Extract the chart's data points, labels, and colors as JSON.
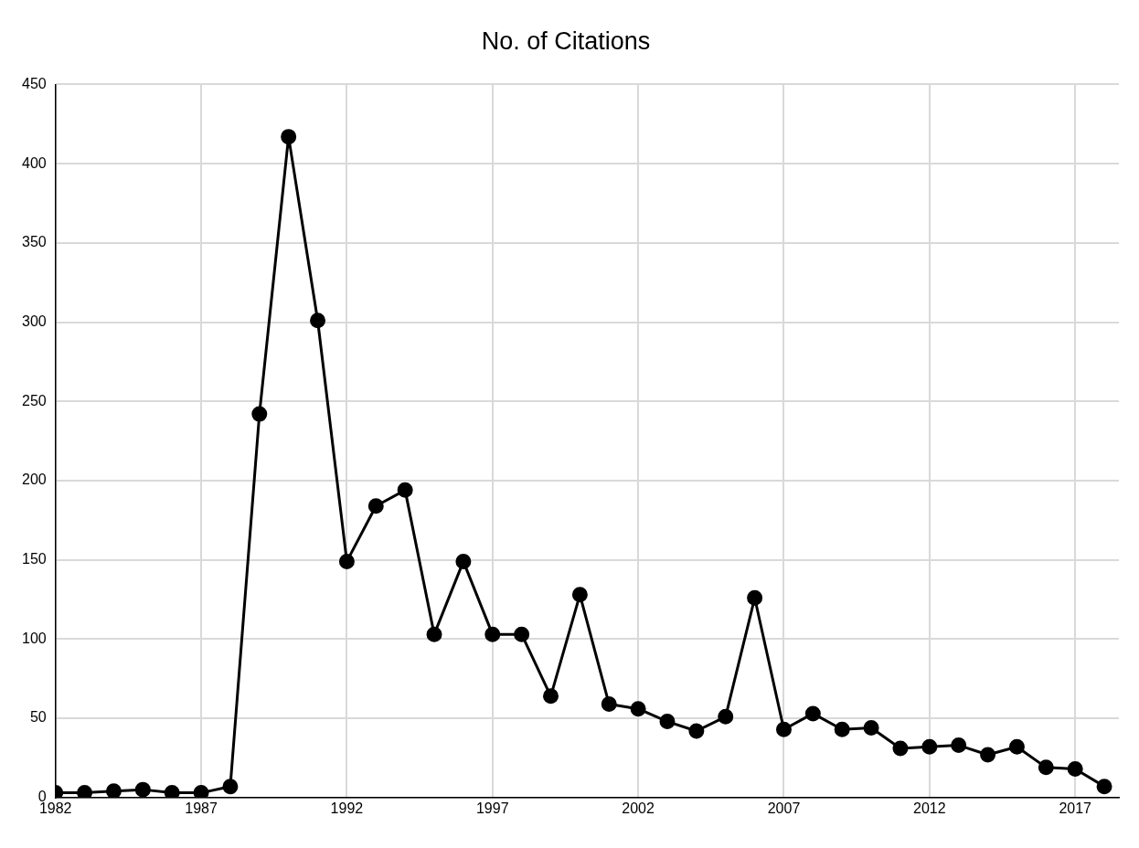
{
  "chart_data": {
    "type": "line",
    "title": "No. of Citations",
    "x": [
      1982,
      1983,
      1984,
      1985,
      1986,
      1987,
      1988,
      1989,
      1990,
      1991,
      1992,
      1993,
      1994,
      1995,
      1996,
      1997,
      1998,
      1999,
      2000,
      2001,
      2002,
      2003,
      2004,
      2005,
      2006,
      2007,
      2008,
      2009,
      2010,
      2011,
      2012,
      2013,
      2014,
      2015,
      2016,
      2017,
      2018
    ],
    "series": [
      {
        "color": "#000000",
        "values": [
          3,
          3,
          4,
          5,
          3,
          3,
          7,
          242,
          417,
          301,
          149,
          184,
          194,
          103,
          149,
          103,
          103,
          64,
          128,
          59,
          56,
          48,
          42,
          51,
          126,
          43,
          53,
          43,
          44,
          31,
          32,
          33,
          27,
          32,
          19,
          18,
          7
        ]
      }
    ],
    "xlim": [
      1982,
      2018.5
    ],
    "xticks": [
      1982,
      1987,
      1992,
      1997,
      2002,
      2007,
      2012,
      2017
    ],
    "ylim": [
      0,
      450
    ],
    "yticks": [
      0,
      50,
      100,
      150,
      200,
      250,
      300,
      350,
      400,
      450
    ],
    "grid": true,
    "legend": false,
    "marker": "circle",
    "line_style": "solid"
  }
}
